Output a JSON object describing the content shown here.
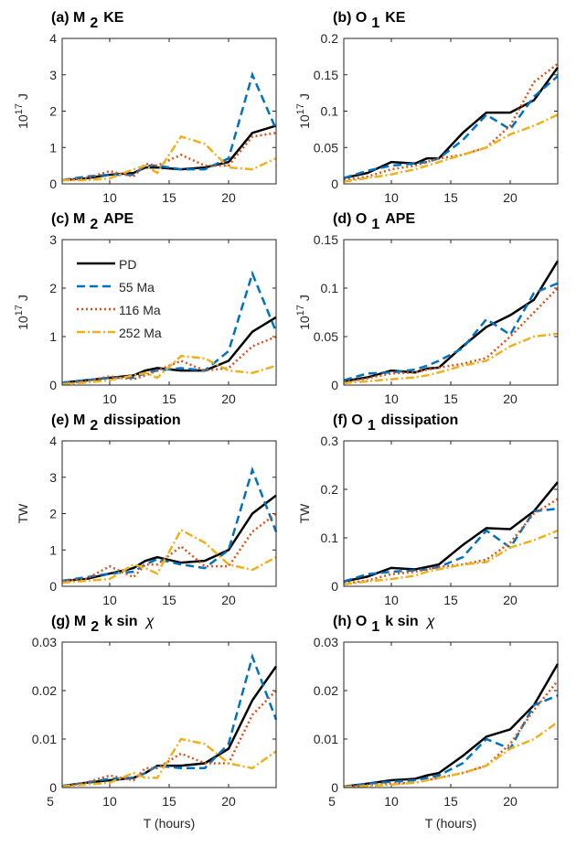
{
  "chart_data": [
    {
      "type": "line",
      "title": "(a) M",
      "title_sub": "2",
      "title_end": "KE",
      "ylabel_base": "10",
      "ylabel_exp": "17",
      "ylabel": "J",
      "x": [
        6,
        8,
        10,
        12,
        13,
        14,
        16,
        18,
        20,
        22,
        24
      ],
      "xlim": [
        6,
        24
      ],
      "xticks": [
        10,
        15,
        20
      ],
      "ylim": [
        0,
        4
      ],
      "yticks": [
        0,
        1,
        2,
        3,
        4
      ],
      "series": [
        {
          "name": "PD",
          "color": "#000000",
          "linestyle": "solid",
          "values": [
            0.1,
            0.15,
            0.25,
            0.3,
            0.45,
            0.45,
            0.4,
            0.45,
            0.6,
            1.4,
            1.6
          ]
        },
        {
          "name": "55 Ma",
          "color": "#0072BD",
          "linestyle": "dashed",
          "values": [
            0.1,
            0.2,
            0.25,
            0.25,
            0.5,
            0.5,
            0.4,
            0.4,
            0.7,
            3.0,
            1.5
          ]
        },
        {
          "name": "116 Ma",
          "color": "#D95319",
          "linestyle": "dotted",
          "values": [
            0.1,
            0.15,
            0.35,
            0.2,
            0.55,
            0.5,
            0.8,
            0.5,
            0.5,
            1.3,
            1.4
          ]
        },
        {
          "name": "252 Ma",
          "color": "#EDB120",
          "linestyle": "dashdot",
          "values": [
            0.1,
            0.1,
            0.15,
            0.4,
            0.5,
            0.3,
            1.3,
            1.1,
            0.45,
            0.4,
            0.7
          ]
        }
      ]
    },
    {
      "type": "line",
      "title": "(b) O",
      "title_sub": "1",
      "title_end": "KE",
      "ylabel_base": "10",
      "ylabel_exp": "17",
      "ylabel": "J",
      "x": [
        6,
        8,
        10,
        12,
        13,
        14,
        16,
        18,
        20,
        22,
        24
      ],
      "xlim": [
        6,
        24
      ],
      "xticks": [
        10,
        15,
        20
      ],
      "ylim": [
        0,
        0.2
      ],
      "yticks": [
        0,
        0.05,
        0.1,
        0.15,
        0.2
      ],
      "series": [
        {
          "name": "PD",
          "color": "#000000",
          "linestyle": "solid",
          "values": [
            0.008,
            0.015,
            0.03,
            0.028,
            0.035,
            0.035,
            0.07,
            0.098,
            0.098,
            0.115,
            0.16
          ]
        },
        {
          "name": "55 Ma",
          "color": "#0072BD",
          "linestyle": "dashed",
          "values": [
            0.008,
            0.018,
            0.025,
            0.028,
            0.03,
            0.035,
            0.06,
            0.095,
            0.075,
            0.12,
            0.148
          ]
        },
        {
          "name": "116 Ma",
          "color": "#D95319",
          "linestyle": "dotted",
          "values": [
            0.005,
            0.01,
            0.02,
            0.025,
            0.03,
            0.035,
            0.04,
            0.05,
            0.08,
            0.14,
            0.165
          ]
        },
        {
          "name": "252 Ma",
          "color": "#EDB120",
          "linestyle": "dashdot",
          "values": [
            0.003,
            0.008,
            0.013,
            0.02,
            0.025,
            0.03,
            0.04,
            0.05,
            0.068,
            0.08,
            0.095
          ]
        }
      ]
    },
    {
      "type": "line",
      "title": "(c) M",
      "title_sub": "2",
      "title_end": "APE",
      "ylabel_base": "10",
      "ylabel_exp": "17",
      "ylabel": "J",
      "legend": "upper left",
      "x": [
        6,
        8,
        10,
        12,
        13,
        14,
        16,
        18,
        20,
        22,
        24
      ],
      "xlim": [
        6,
        24
      ],
      "xticks": [
        10,
        15,
        20
      ],
      "ylim": [
        0,
        3
      ],
      "yticks": [
        0,
        1,
        2,
        3
      ],
      "series": [
        {
          "name": "PD",
          "color": "#000000",
          "linestyle": "solid",
          "values": [
            0.05,
            0.1,
            0.15,
            0.2,
            0.3,
            0.35,
            0.3,
            0.3,
            0.5,
            1.1,
            1.4
          ]
        },
        {
          "name": "55 Ma",
          "color": "#0072BD",
          "linestyle": "dashed",
          "values": [
            0.05,
            0.1,
            0.15,
            0.15,
            0.25,
            0.3,
            0.35,
            0.3,
            0.7,
            2.3,
            1.1
          ]
        },
        {
          "name": "116 Ma",
          "color": "#D95319",
          "linestyle": "dotted",
          "values": [
            0.03,
            0.08,
            0.18,
            0.12,
            0.2,
            0.3,
            0.5,
            0.3,
            0.35,
            0.8,
            1.0
          ]
        },
        {
          "name": "252 Ma",
          "color": "#EDB120",
          "linestyle": "dashdot",
          "values": [
            0.02,
            0.05,
            0.1,
            0.2,
            0.25,
            0.15,
            0.6,
            0.55,
            0.3,
            0.25,
            0.4
          ]
        }
      ]
    },
    {
      "type": "line",
      "title": "(d) O",
      "title_sub": "1",
      "title_end": "APE",
      "ylabel_base": "10",
      "ylabel_exp": "17",
      "ylabel": "J",
      "x": [
        6,
        8,
        10,
        12,
        13,
        14,
        16,
        18,
        20,
        22,
        24
      ],
      "xlim": [
        6,
        24
      ],
      "xticks": [
        10,
        15,
        20
      ],
      "ylim": [
        0,
        0.15
      ],
      "yticks": [
        0,
        0.05,
        0.1,
        0.15
      ],
      "series": [
        {
          "name": "PD",
          "color": "#000000",
          "linestyle": "solid",
          "values": [
            0.004,
            0.008,
            0.015,
            0.013,
            0.017,
            0.018,
            0.04,
            0.06,
            0.072,
            0.088,
            0.128
          ]
        },
        {
          "name": "55 Ma",
          "color": "#0072BD",
          "linestyle": "dashed",
          "values": [
            0.005,
            0.012,
            0.013,
            0.016,
            0.02,
            0.025,
            0.038,
            0.068,
            0.052,
            0.095,
            0.105
          ]
        },
        {
          "name": "116 Ma",
          "color": "#D95319",
          "linestyle": "dotted",
          "values": [
            0.003,
            0.007,
            0.012,
            0.013,
            0.016,
            0.018,
            0.022,
            0.028,
            0.05,
            0.075,
            0.1
          ]
        },
        {
          "name": "252 Ma",
          "color": "#EDB120",
          "linestyle": "dashdot",
          "values": [
            0.002,
            0.004,
            0.006,
            0.008,
            0.01,
            0.013,
            0.02,
            0.025,
            0.04,
            0.05,
            0.053
          ]
        }
      ]
    },
    {
      "type": "line",
      "title": "(e) M",
      "title_sub": "2",
      "title_end": "dissipation",
      "ylabel": "TW",
      "x": [
        6,
        8,
        10,
        12,
        13,
        14,
        16,
        18,
        20,
        22,
        24
      ],
      "xlim": [
        6,
        24
      ],
      "xticks": [
        10,
        15,
        20
      ],
      "ylim": [
        0,
        4
      ],
      "yticks": [
        0,
        1,
        2,
        3,
        4
      ],
      "series": [
        {
          "name": "PD",
          "color": "#000000",
          "linestyle": "solid",
          "values": [
            0.15,
            0.2,
            0.35,
            0.5,
            0.7,
            0.8,
            0.65,
            0.7,
            1.0,
            2.0,
            2.5
          ]
        },
        {
          "name": "55 Ma",
          "color": "#0072BD",
          "linestyle": "dashed",
          "values": [
            0.15,
            0.25,
            0.35,
            0.4,
            0.6,
            0.75,
            0.6,
            0.5,
            1.0,
            3.2,
            1.5
          ]
        },
        {
          "name": "116 Ma",
          "color": "#D95319",
          "linestyle": "dotted",
          "values": [
            0.15,
            0.2,
            0.55,
            0.25,
            0.6,
            0.6,
            1.1,
            0.55,
            0.55,
            1.5,
            2.0
          ]
        },
        {
          "name": "252 Ma",
          "color": "#EDB120",
          "linestyle": "dashdot",
          "values": [
            0.1,
            0.15,
            0.2,
            0.6,
            0.5,
            0.35,
            1.55,
            1.2,
            0.6,
            0.45,
            0.8
          ]
        }
      ]
    },
    {
      "type": "line",
      "title": "(f) O",
      "title_sub": "1",
      "title_end": "dissipation",
      "ylabel": "TW",
      "x": [
        6,
        8,
        10,
        12,
        13,
        14,
        16,
        18,
        20,
        22,
        24
      ],
      "xlim": [
        6,
        24
      ],
      "xticks": [
        10,
        15,
        20
      ],
      "ylim": [
        0,
        0.3
      ],
      "yticks": [
        0,
        0.1,
        0.2,
        0.3
      ],
      "series": [
        {
          "name": "PD",
          "color": "#000000",
          "linestyle": "solid",
          "values": [
            0.01,
            0.02,
            0.038,
            0.035,
            0.04,
            0.045,
            0.085,
            0.12,
            0.118,
            0.155,
            0.215
          ]
        },
        {
          "name": "55 Ma",
          "color": "#0072BD",
          "linestyle": "dashed",
          "values": [
            0.01,
            0.025,
            0.03,
            0.033,
            0.035,
            0.04,
            0.06,
            0.115,
            0.08,
            0.155,
            0.16
          ]
        },
        {
          "name": "116 Ma",
          "color": "#D95319",
          "linestyle": "dotted",
          "values": [
            0.006,
            0.012,
            0.025,
            0.03,
            0.035,
            0.04,
            0.045,
            0.055,
            0.09,
            0.15,
            0.18
          ]
        },
        {
          "name": "252 Ma",
          "color": "#EDB120",
          "linestyle": "dashdot",
          "values": [
            0.004,
            0.01,
            0.015,
            0.022,
            0.03,
            0.035,
            0.045,
            0.05,
            0.08,
            0.095,
            0.115
          ]
        }
      ]
    },
    {
      "type": "line",
      "title": "(g) M",
      "title_sub": "2",
      "title_end": "k sin",
      "title_symbol": "χ",
      "xlabel": "T (hours)",
      "x": [
        6,
        8,
        10,
        12,
        13,
        14,
        16,
        18,
        20,
        22,
        24
      ],
      "xlim": [
        6,
        24
      ],
      "xticks": [
        5,
        10,
        15,
        20
      ],
      "ylim": [
        0,
        0.03
      ],
      "yticks": [
        0,
        0.01,
        0.02,
        0.03
      ],
      "series": [
        {
          "name": "PD",
          "color": "#000000",
          "linestyle": "solid",
          "values": [
            0.0003,
            0.001,
            0.0015,
            0.002,
            0.003,
            0.0045,
            0.0045,
            0.005,
            0.008,
            0.018,
            0.025
          ]
        },
        {
          "name": "55 Ma",
          "color": "#0072BD",
          "linestyle": "dashed",
          "values": [
            0.0003,
            0.001,
            0.0018,
            0.002,
            0.003,
            0.0045,
            0.004,
            0.004,
            0.009,
            0.027,
            0.014
          ]
        },
        {
          "name": "116 Ma",
          "color": "#D95319",
          "linestyle": "dotted",
          "values": [
            0.0002,
            0.001,
            0.0025,
            0.0015,
            0.004,
            0.004,
            0.007,
            0.005,
            0.005,
            0.015,
            0.02
          ]
        },
        {
          "name": "252 Ma",
          "color": "#EDB120",
          "linestyle": "dashdot",
          "values": [
            0.0002,
            0.0006,
            0.001,
            0.003,
            0.002,
            0.002,
            0.01,
            0.009,
            0.005,
            0.004,
            0.0075
          ]
        }
      ]
    },
    {
      "type": "line",
      "title": "(h) O",
      "title_sub": "1",
      "title_end": "k sin",
      "title_symbol": "χ",
      "xlabel": "T (hours)",
      "x": [
        6,
        8,
        10,
        12,
        13,
        14,
        16,
        18,
        20,
        22,
        24
      ],
      "xlim": [
        6,
        24
      ],
      "xticks": [
        5,
        10,
        15,
        20
      ],
      "ylim": [
        0,
        0.03
      ],
      "yticks": [
        0,
        0.01,
        0.02,
        0.03
      ],
      "series": [
        {
          "name": "PD",
          "color": "#000000",
          "linestyle": "solid",
          "values": [
            0.0002,
            0.0008,
            0.0015,
            0.0018,
            0.0025,
            0.003,
            0.0065,
            0.0105,
            0.012,
            0.017,
            0.0255
          ]
        },
        {
          "name": "55 Ma",
          "color": "#0072BD",
          "linestyle": "dashed",
          "values": [
            0.0002,
            0.0008,
            0.0012,
            0.0015,
            0.002,
            0.0025,
            0.005,
            0.01,
            0.008,
            0.017,
            0.019
          ]
        },
        {
          "name": "116 Ma",
          "color": "#D95319",
          "linestyle": "dotted",
          "values": [
            0.0001,
            0.0005,
            0.0008,
            0.001,
            0.0015,
            0.002,
            0.003,
            0.0045,
            0.009,
            0.016,
            0.022
          ]
        },
        {
          "name": "252 Ma",
          "color": "#EDB120",
          "linestyle": "dashdot",
          "values": [
            0.0001,
            0.0003,
            0.0006,
            0.001,
            0.0015,
            0.002,
            0.003,
            0.0045,
            0.008,
            0.01,
            0.0135
          ]
        }
      ]
    }
  ]
}
